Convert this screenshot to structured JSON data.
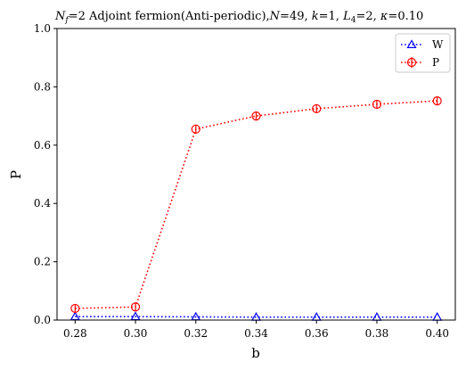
{
  "chart_data": {
    "type": "line",
    "title": "N_f = 2 Adjoint fermion(Anti-periodic), N = 49, k = 1, L_4 = 2, κ = 0.10",
    "title_parts": {
      "nf_var": "N",
      "nf_sub": "f",
      "nf_val": "=2",
      "desc": " Adjoint fermion(Anti-periodic),",
      "n_var": "N",
      "n_val": "=49, ",
      "k_var": "k",
      "k_val": "=1, ",
      "l_var": "L",
      "l_sub": "4",
      "l_val": "=2, ",
      "kappa_var": "κ",
      "kappa_val": "=0.10"
    },
    "xlabel": "b",
    "ylabel": "P",
    "xlim": [
      0.274,
      0.406
    ],
    "ylim": [
      0.0,
      1.0
    ],
    "x_ticks": [
      "0.28",
      "0.30",
      "0.32",
      "0.34",
      "0.36",
      "0.38",
      "0.40"
    ],
    "y_ticks": [
      "0.0",
      "0.2",
      "0.4",
      "0.6",
      "0.8",
      "1.0"
    ],
    "legend_position": "top-right",
    "grid": false,
    "x": [
      0.28,
      0.3,
      0.32,
      0.34,
      0.36,
      0.38,
      0.4
    ],
    "series": [
      {
        "name": "W",
        "color": "#0000ff",
        "marker": "triangle",
        "linestyle": "dotted",
        "values": [
          0.012,
          0.012,
          0.011,
          0.01,
          0.01,
          0.01,
          0.01
        ]
      },
      {
        "name": "P",
        "color": "#ff0000",
        "marker": "circle",
        "linestyle": "dotted",
        "errorbars": true,
        "values": [
          0.04,
          0.045,
          0.655,
          0.7,
          0.725,
          0.74,
          0.752
        ]
      }
    ]
  }
}
